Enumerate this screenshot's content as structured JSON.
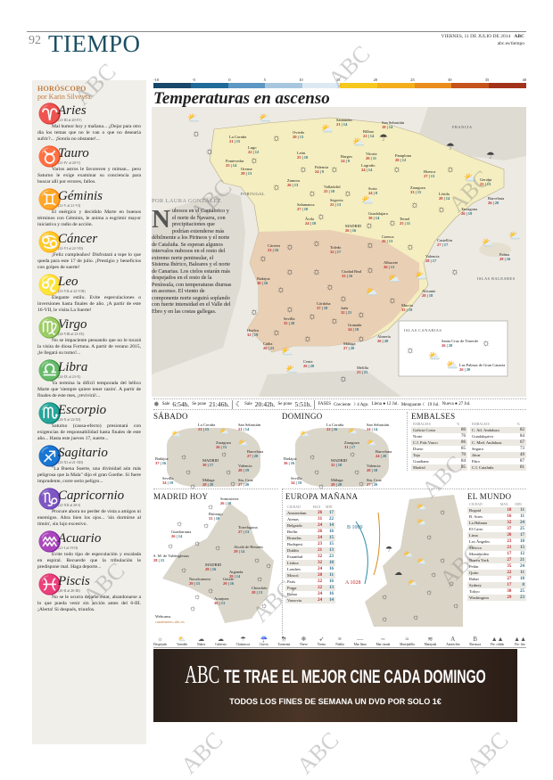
{
  "header": {
    "page_number": "92",
    "section": "TIEMPO",
    "date": "VIERNES, 11 DE JULIO DE 2014",
    "brand": "ABC",
    "url": "abc.es/tiempo"
  },
  "horoscope": {
    "title": "HORÓSCOPO",
    "author": "por Karin Silveyra",
    "signs": [
      {
        "name": "Aries",
        "glyph": "♈",
        "dates": "(21-III al 20-IV)",
        "text": "Mal humor hoy y mañana... ¿Dejar para otro día los temas que no le van o que no desearía sufrir?... ¡Sonría no obstante!..."
      },
      {
        "name": "Tauro",
        "glyph": "♉",
        "dates": "(21-IV al 20-V)",
        "text": "Varios astros le favorecen y miman... pero Saturno le exige examinar su conciencia para buscar allí por errores, fallos."
      },
      {
        "name": "Géminis",
        "glyph": "♊",
        "dates": "(21-V al 21-VI)",
        "text": "El enérgico y decidido Marte en buenos términos con Géminis, le anima a esgrimir mayor iniciativa y radio de acción."
      },
      {
        "name": "Cáncer",
        "glyph": "♋",
        "dates": "(22-VI al 22-VII)",
        "text": "¡Feliz cumpleaños! Disfrutará a tope lo que queda para este 17 de julio. ¡Prestigio y beneficios con golpes de suerte!"
      },
      {
        "name": "Leo",
        "glyph": "♌",
        "dates": "(23-VII al 22-VIII)",
        "text": "Elegante estilo. Evite especulaciones o inversiones hasta finales de año. ¡A partir de este 16-VII, le visita La Suerte!"
      },
      {
        "name": "Virgo",
        "glyph": "♍",
        "dates": "(24-VIII al 23-IX)",
        "text": "No se impaciente pensando que no le tocará la visita de diosa Fortuna. A partir de verano 2015, ¡le llegará su turno!..."
      },
      {
        "name": "Libra",
        "glyph": "♎",
        "dates": "(24-IX al 23-X)",
        "text": "Ya termina la difícil temporada del bélico Marte que 'siempre quiere tener razón'. A partir de finales de este mes, ¡revivirá!..."
      },
      {
        "name": "Escorpio",
        "glyph": "♏",
        "dates": "(24-X al 22-XI)",
        "text": "Saturno (causa-efecto) presionará con exigencias de responsabilidad hasta finales de este año... Hasta este jueves 17, suerte..."
      },
      {
        "name": "Sagitario",
        "glyph": "♐",
        "dates": "(23-XI al 21-XII)",
        "text": "\"La Buena Suerte, una divinidad aún más peligrosa que la Mala\" dijo el gran Goethe. Si fuere imprudente, corre serio peligro..."
      },
      {
        "name": "Capricornio",
        "glyph": "♑",
        "dates": "(22-XII al 20-I)",
        "text": "Procure ahora no perder de vista a amigos ni enemigos. Abra bien los ojos... 'sin dormirse al timón', sin lujo excesivo."
      },
      {
        "name": "Acuario",
        "glyph": "♒",
        "dates": "(21-I al 19-II)",
        "text": "Evite todo tipo de especulación y escalada en espiral. Recuerde que la tribulación le predispone mal. Haga deporte..."
      },
      {
        "name": "Piscis",
        "glyph": "♓",
        "dates": "(20-II al 20-III)",
        "text": "No se le ocurra dejarse estar, abandonarse a lo que pueda venir sin acción antes del 6-III. ¡Alerta! Si después, triunfos."
      }
    ]
  },
  "scale": {
    "ticks": [
      "-10",
      "-5",
      "0",
      "5",
      "10",
      "15",
      "20",
      "25",
      "30",
      "35",
      "40"
    ],
    "colors": [
      "#17476a",
      "#1f6a98",
      "#5d97c3",
      "#a8c7df",
      "#dce9f3",
      "#f6c81e",
      "#f3ae1e",
      "#ea8d1c",
      "#c6521c",
      "#a2321a"
    ]
  },
  "title": "Temperaturas en ascenso",
  "article": {
    "byline": "POR LAURA GONZÁLEZ",
    "dropcap": "N",
    "text": "ubosos en el Cantábrico y el norte de Navarra, con precipitaciones que podrían extenderse más débilmente a los Pirineos y el norte de Cataluña. Se esperan algunos intervalos nubosos en el resto del extremo norte peninsular, el Sistema Ibérico, Baleares y el norte de Canarias. Los cielos estarán más despejados en el resto de la Península, con temperaturas diurnas en ascenso. El viento de componente norte seguirá soplando con fuerte intensidad en el Valle del Ebro y en las costas gallegas."
  },
  "map": {
    "labels": [
      "FRANCIA",
      "PORTUGAL",
      "ISLAS BALEARES",
      "ISLAS CANARIAS"
    ],
    "cities": [
      {
        "name": "Santander",
        "max": "21",
        "min": "14"
      },
      {
        "name": "San Sebastián",
        "max": "18",
        "min": "14"
      },
      {
        "name": "Oviedo",
        "max": "20",
        "min": "13"
      },
      {
        "name": "Bilbao",
        "max": "22",
        "min": "14"
      },
      {
        "name": "La Coruña",
        "max": "21",
        "min": "15"
      },
      {
        "name": "Lugo",
        "max": "22",
        "min": "12"
      },
      {
        "name": "León",
        "max": "25",
        "min": "10"
      },
      {
        "name": "Burgos",
        "max": "24",
        "min": "9"
      },
      {
        "name": "Vitoria",
        "max": "20",
        "min": "11"
      },
      {
        "name": "Pamplona",
        "max": "20",
        "min": "12"
      },
      {
        "name": "Pontevedra",
        "max": "25",
        "min": "14"
      },
      {
        "name": "Orense",
        "max": "28",
        "min": "13"
      },
      {
        "name": "Palencia",
        "max": "24",
        "min": "9"
      },
      {
        "name": "Logroño",
        "max": "24",
        "min": "14"
      },
      {
        "name": "Huesca",
        "max": "27",
        "min": "13"
      },
      {
        "name": "Gerona",
        "max": "25",
        "min": "13"
      },
      {
        "name": "Zamora",
        "max": "26",
        "min": "13"
      },
      {
        "name": "Valladolid",
        "max": "25",
        "min": "10"
      },
      {
        "name": "Soria",
        "max": "24",
        "min": "8"
      },
      {
        "name": "Zaragoza",
        "max": "33",
        "min": "15"
      },
      {
        "name": "Lérida",
        "max": "28",
        "min": "14"
      },
      {
        "name": "Barcelona",
        "max": "26",
        "min": "20"
      },
      {
        "name": "Salamanca",
        "max": "27",
        "min": "10"
      },
      {
        "name": "Segovia",
        "max": "25",
        "min": "13"
      },
      {
        "name": "Guadalajara",
        "max": "30",
        "min": "14"
      },
      {
        "name": "Teruel",
        "max": "25",
        "min": "11"
      },
      {
        "name": "Tarragona",
        "max": "26",
        "min": "19"
      },
      {
        "name": "Ávila",
        "max": "24",
        "min": "10"
      },
      {
        "name": "MADRID",
        "max": "26",
        "min": "16"
      },
      {
        "name": "Cuenca",
        "max": "26",
        "min": "13"
      },
      {
        "name": "Castellón",
        "max": "27",
        "min": "17"
      },
      {
        "name": "Cáceres",
        "max": "23",
        "min": "16"
      },
      {
        "name": "Toledo",
        "max": "32",
        "min": "17"
      },
      {
        "name": "Palma",
        "max": "28",
        "min": "16"
      },
      {
        "name": "Valencia",
        "max": "28",
        "min": "17"
      },
      {
        "name": "Albacete",
        "max": "26",
        "min": "13"
      },
      {
        "name": "Badajoz",
        "max": "30",
        "min": "16"
      },
      {
        "name": "Ciudad Real",
        "max": "32",
        "min": "16"
      },
      {
        "name": "Alicante",
        "max": "28",
        "min": "18"
      },
      {
        "name": "Córdoba",
        "max": "37",
        "min": "18"
      },
      {
        "name": "Jaén",
        "max": "32",
        "min": "21"
      },
      {
        "name": "Murcia",
        "max": "33",
        "min": "19"
      },
      {
        "name": "Sevilla",
        "max": "35",
        "min": "20"
      },
      {
        "name": "Huelva",
        "max": "32",
        "min": "19"
      },
      {
        "name": "Granada",
        "max": "34",
        "min": "18"
      },
      {
        "name": "Almería",
        "max": "26",
        "min": "20"
      },
      {
        "name": "Cádiz",
        "max": "26",
        "min": "23"
      },
      {
        "name": "Málaga",
        "max": "27",
        "min": "20"
      },
      {
        "name": "Ceuta",
        "max": "26",
        "min": "20"
      },
      {
        "name": "Melilla",
        "max": "23",
        "min": "21"
      },
      {
        "name": "Santa Cruz de Tenerife",
        "max": "26",
        "min": "20"
      },
      {
        "name": "Las Palmas de Gran Canaria",
        "max": "26",
        "min": "20"
      }
    ]
  },
  "sun_moon": {
    "sun_rise_label": "Sale",
    "sun_rise": "6:54h.",
    "sun_set_label": "Se pone",
    "sun_set": "21:46h.",
    "moon_rise_label": "Sale",
    "moon_rise": "20:42h.",
    "moon_set_label": "Se pone",
    "moon_set": "5:51h.",
    "phases_label": "FASES",
    "phases": [
      "Creciente ☽ 4 Ago.",
      "Llena ● 12 Jul.",
      "Menguante ☾ 19 Jul.",
      "Nueva ● 27 Jul."
    ]
  },
  "forecast": [
    {
      "day": "SÁBADO",
      "cities": [
        {
          "name": "La Coruña",
          "max": "21",
          "min": "15"
        },
        {
          "name": "San Sebastián",
          "max": "21",
          "min": "14"
        },
        {
          "name": "Zaragoza",
          "max": "26",
          "min": "15"
        },
        {
          "name": "Barcelona",
          "max": "27",
          "min": "20"
        },
        {
          "name": "Badajoz",
          "max": "37",
          "min": "16"
        },
        {
          "name": "MADRID",
          "max": "30",
          "min": "17"
        },
        {
          "name": "Valencia",
          "max": "28",
          "min": "19"
        },
        {
          "name": "Sevilla",
          "max": "34",
          "min": "19"
        },
        {
          "name": "Málaga",
          "max": "28",
          "min": "20"
        },
        {
          "name": "Sta. Cruz",
          "max": "27",
          "min": "20"
        }
      ]
    },
    {
      "day": "DOMINGO",
      "cities": [
        {
          "name": "La Coruña",
          "max": "22",
          "min": "16"
        },
        {
          "name": "San Sebastián",
          "max": "24",
          "min": "14"
        },
        {
          "name": "Zaragoza",
          "max": "31",
          "min": "17"
        },
        {
          "name": "Barcelona",
          "max": "24",
          "min": "20"
        },
        {
          "name": "Badajoz",
          "max": "36",
          "min": "16"
        },
        {
          "name": "MADRID",
          "max": "32",
          "min": "18"
        },
        {
          "name": "Valencia",
          "max": "28",
          "min": "18"
        },
        {
          "name": "Sevilla",
          "max": "34",
          "min": "19"
        },
        {
          "name": "Málaga",
          "max": "28",
          "min": "20"
        },
        {
          "name": "Sta. Cruz",
          "max": "27",
          "min": "20"
        }
      ]
    }
  ],
  "embalses": {
    "title": "EMBALSES",
    "col_name": "EMBALSES",
    "col_pct": "%",
    "left": [
      [
        "Galicia Costa",
        "86"
      ],
      [
        "Norte",
        "76"
      ],
      [
        "C.I. País Vasco",
        "86"
      ],
      [
        "Duero",
        "85"
      ],
      [
        "Tajo",
        "70"
      ],
      [
        "Guadiana",
        "84"
      ],
      [
        "Madrid",
        "85"
      ]
    ],
    "right": [
      [
        "C. Atl. Andaluza",
        "82"
      ],
      [
        "Guadalquivir",
        "84"
      ],
      [
        "C. Med. Andaluza",
        "67"
      ],
      [
        "Segura",
        "73"
      ],
      [
        "Júcar",
        "49"
      ],
      [
        "Ebro",
        "87"
      ],
      [
        "C.I. Cataluña",
        "81"
      ]
    ]
  },
  "madrid_hoy": {
    "title": "MADRID HOY",
    "webcams_label": "Webcams",
    "webcams_url": "canalmeteo.abc.es",
    "cities": [
      {
        "name": "Somosierra",
        "max": "26",
        "min": "10"
      },
      {
        "name": "Buitrago",
        "max": "31",
        "min": "10"
      },
      {
        "name": "Torrelaguna",
        "max": "27",
        "min": "13"
      },
      {
        "name": "Guadarrama",
        "max": "26",
        "min": "14"
      },
      {
        "name": "Alcalá de Henares",
        "max": "29",
        "min": "14"
      },
      {
        "name": "S. M. de Valdeiglesias",
        "max": "28",
        "min": "15"
      },
      {
        "name": "MADRID",
        "max": "28",
        "min": "16"
      },
      {
        "name": "Arganda",
        "max": "29",
        "min": "14"
      },
      {
        "name": "Navalcarnero",
        "max": "29",
        "min": "15"
      },
      {
        "name": "Getafe",
        "max": "29",
        "min": "16"
      },
      {
        "name": "Chinchón",
        "max": "28",
        "min": "13"
      },
      {
        "name": "Aranjuez",
        "max": "30",
        "min": "13"
      }
    ]
  },
  "europa": {
    "title": "EUROPA MAÑANA",
    "cols": [
      "CIUDAD",
      "MAX",
      "MIN"
    ],
    "pressure": [
      {
        "type": "B",
        "value": "1000"
      },
      {
        "type": "A",
        "value": "1028"
      }
    ],
    "rows": [
      [
        "Amsterdam",
        "26",
        "17"
      ],
      [
        "Atenas",
        "31",
        "22"
      ],
      [
        "Belgrado",
        "24",
        "14"
      ],
      [
        "Berlín",
        "26",
        "16"
      ],
      [
        "Bruselas",
        "24",
        "15"
      ],
      [
        "Budapest",
        "23",
        "15"
      ],
      [
        "Dublín",
        "21",
        "13"
      ],
      [
        "Estambul",
        "32",
        "23"
      ],
      [
        "Lisboa",
        "32",
        "18"
      ],
      [
        "Londres",
        "24",
        "16"
      ],
      [
        "Moscú",
        "20",
        "11"
      ],
      [
        "París",
        "22",
        "16"
      ],
      [
        "Praga",
        "22",
        "13"
      ],
      [
        "Roma",
        "24",
        "16"
      ],
      [
        "Varsovia",
        "24",
        "14"
      ]
    ]
  },
  "mundo": {
    "title": "EL MUNDO",
    "cols": [
      "CIUDAD",
      "MAX",
      "MIN"
    ],
    "rows": [
      [
        "Bogotá",
        "18",
        "11"
      ],
      [
        "B. Aires",
        "16",
        "11"
      ],
      [
        "La Habana",
        "32",
        "24"
      ],
      [
        "El Cairo",
        "37",
        "25"
      ],
      [
        "Lima",
        "20",
        "17"
      ],
      [
        "Los Ángeles",
        "23",
        "18"
      ],
      [
        "México",
        "21",
        "15"
      ],
      [
        "Montevideo",
        "17",
        "12"
      ],
      [
        "Nueva York",
        "27",
        "21"
      ],
      [
        "Pekín",
        "35",
        "24"
      ],
      [
        "Quito",
        "22",
        "11"
      ],
      [
        "Rabat",
        "27",
        "18"
      ],
      [
        "Sydney",
        "17",
        "8"
      ],
      [
        "Tokyo",
        "30",
        "25"
      ],
      [
        "Washington",
        "29",
        "23"
      ]
    ]
  },
  "legend": [
    [
      "☼",
      "Despejado"
    ],
    [
      "⛅",
      "Variable"
    ],
    [
      "☁",
      "Nubes"
    ],
    [
      "☁",
      "Cubierto"
    ],
    [
      "☂",
      "Chubascos"
    ],
    [
      "☔",
      "Lluvia"
    ],
    [
      "⛈",
      "Tormenta"
    ],
    [
      "❄",
      "Nieve"
    ],
    [
      "➶",
      "Viento"
    ],
    [
      "≡",
      "Niebla"
    ],
    [
      "—",
      "Mar llana"
    ],
    [
      "∼",
      "Mar rizada"
    ],
    [
      "≈",
      "Marejadilla"
    ],
    [
      "≋",
      "Marejada"
    ],
    [
      "A",
      "Anticiclón"
    ],
    [
      "B",
      "Borrasca"
    ],
    [
      "▲▲",
      "Fte. cálido"
    ],
    [
      "▲▲",
      "Fte. frío"
    ]
  ],
  "ad": {
    "brand": "ABC",
    "headline": "TE TRAE EL MEJOR CINE CADA DOMINGO",
    "sub": "TODOS LOS FINES DE SEMANA UN DVD POR SOLO 1€"
  },
  "watermark": "ABC"
}
